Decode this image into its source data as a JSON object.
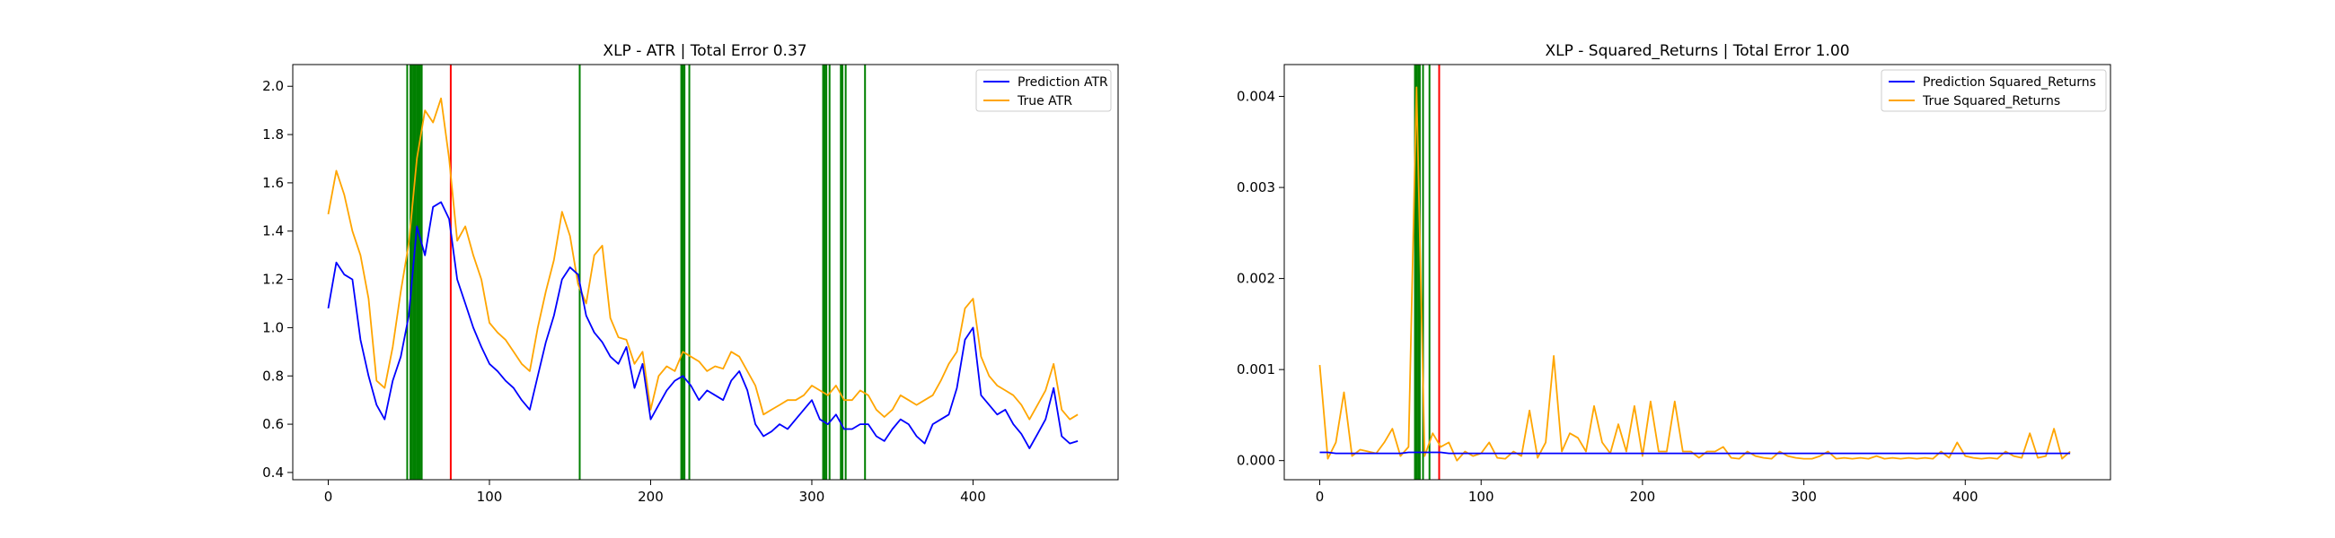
{
  "chart_data": [
    {
      "type": "line",
      "title": "XLP - ATR | Total Error 0.37",
      "xlabel": "",
      "ylabel": "",
      "xlim": [
        -22,
        490
      ],
      "ylim": [
        0.37,
        2.09
      ],
      "x_ticks": [
        0,
        100,
        200,
        300,
        400
      ],
      "y_ticks": [
        0.4,
        0.6,
        0.8,
        1.0,
        1.2,
        1.4,
        1.6,
        1.8,
        2.0
      ],
      "y_tick_labels": [
        "0.4",
        "0.6",
        "0.8",
        "1.0",
        "1.2",
        "1.4",
        "1.6",
        "1.8",
        "2.0"
      ],
      "grid": false,
      "legend_position": "top-right",
      "x_start": 0,
      "x_step": 5,
      "series": [
        {
          "name": "Prediction ATR",
          "color": "#0000ff",
          "values": [
            1.08,
            1.27,
            1.22,
            1.2,
            0.95,
            0.8,
            0.68,
            0.62,
            0.78,
            0.88,
            1.05,
            1.42,
            1.3,
            1.5,
            1.52,
            1.45,
            1.2,
            1.1,
            1.0,
            0.92,
            0.85,
            0.82,
            0.78,
            0.75,
            0.7,
            0.66,
            0.8,
            0.94,
            1.05,
            1.2,
            1.25,
            1.22,
            1.05,
            0.98,
            0.94,
            0.88,
            0.85,
            0.92,
            0.75,
            0.85,
            0.62,
            0.68,
            0.74,
            0.78,
            0.8,
            0.76,
            0.7,
            0.74,
            0.72,
            0.7,
            0.78,
            0.82,
            0.74,
            0.6,
            0.55,
            0.57,
            0.6,
            0.58,
            0.62,
            0.66,
            0.7,
            0.62,
            0.6,
            0.64,
            0.58,
            0.58,
            0.6,
            0.6,
            0.55,
            0.53,
            0.58,
            0.62,
            0.6,
            0.55,
            0.52,
            0.6,
            0.62,
            0.64,
            0.75,
            0.95,
            1.0,
            0.72,
            0.68,
            0.64,
            0.66,
            0.6,
            0.56,
            0.5,
            0.56,
            0.62,
            0.75,
            0.55,
            0.52,
            0.53
          ]
        },
        {
          "name": "True ATR",
          "color": "#ffa500",
          "values": [
            1.47,
            1.65,
            1.55,
            1.4,
            1.3,
            1.12,
            0.78,
            0.75,
            0.92,
            1.15,
            1.35,
            1.7,
            1.9,
            1.85,
            1.95,
            1.7,
            1.36,
            1.42,
            1.3,
            1.2,
            1.02,
            0.98,
            0.95,
            0.9,
            0.85,
            0.82,
            1.0,
            1.15,
            1.28,
            1.48,
            1.38,
            1.18,
            1.1,
            1.3,
            1.34,
            1.04,
            0.96,
            0.95,
            0.85,
            0.9,
            0.66,
            0.8,
            0.84,
            0.82,
            0.9,
            0.88,
            0.86,
            0.82,
            0.84,
            0.83,
            0.9,
            0.88,
            0.82,
            0.76,
            0.64,
            0.66,
            0.68,
            0.7,
            0.7,
            0.72,
            0.76,
            0.74,
            0.72,
            0.76,
            0.7,
            0.7,
            0.74,
            0.72,
            0.66,
            0.63,
            0.66,
            0.72,
            0.7,
            0.68,
            0.7,
            0.72,
            0.78,
            0.85,
            0.9,
            1.08,
            1.12,
            0.88,
            0.8,
            0.76,
            0.74,
            0.72,
            0.68,
            0.62,
            0.68,
            0.74,
            0.85,
            0.66,
            0.62,
            0.64
          ]
        }
      ],
      "green_vlines": [
        49,
        51,
        52,
        53,
        54,
        55,
        56,
        57,
        58,
        156,
        219,
        220,
        221,
        224,
        307,
        308,
        309,
        311,
        318,
        319,
        321,
        333
      ],
      "red_vlines": [
        76
      ]
    },
    {
      "type": "line",
      "title": "XLP - Squared_Returns | Total Error 1.00",
      "xlabel": "",
      "ylabel": "",
      "xlim": [
        -22,
        490
      ],
      "ylim": [
        -0.00021,
        0.00435
      ],
      "x_ticks": [
        0,
        100,
        200,
        300,
        400
      ],
      "y_ticks": [
        0.0,
        0.001,
        0.002,
        0.003,
        0.004
      ],
      "y_tick_labels": [
        "0.000",
        "0.001",
        "0.002",
        "0.003",
        "0.004"
      ],
      "grid": false,
      "legend_position": "top-right",
      "x_start": 0,
      "x_step": 5,
      "series": [
        {
          "name": "Prediction Squared_Returns",
          "color": "#0000ff",
          "values": [
            9e-05,
            9e-05,
            8e-05,
            8e-05,
            8e-05,
            8e-05,
            8e-05,
            8e-05,
            8e-05,
            8e-05,
            8e-05,
            9e-05,
            9e-05,
            9e-05,
            9e-05,
            9e-05,
            8e-05,
            8e-05,
            8e-05,
            8e-05,
            8e-05,
            8e-05,
            8e-05,
            8e-05,
            8e-05,
            8e-05,
            8e-05,
            8e-05,
            8e-05,
            8e-05,
            8e-05,
            8e-05,
            8e-05,
            8e-05,
            8e-05,
            8e-05,
            8e-05,
            8e-05,
            8e-05,
            8e-05,
            8e-05,
            8e-05,
            8e-05,
            8e-05,
            8e-05,
            8e-05,
            8e-05,
            8e-05,
            8e-05,
            8e-05,
            8e-05,
            8e-05,
            8e-05,
            8e-05,
            8e-05,
            8e-05,
            8e-05,
            8e-05,
            8e-05,
            8e-05,
            8e-05,
            8e-05,
            8e-05,
            8e-05,
            8e-05,
            8e-05,
            8e-05,
            8e-05,
            8e-05,
            8e-05,
            8e-05,
            8e-05,
            8e-05,
            8e-05,
            8e-05,
            8e-05,
            8e-05,
            8e-05,
            8e-05,
            8e-05,
            8e-05,
            8e-05,
            8e-05,
            8e-05,
            8e-05,
            8e-05,
            8e-05,
            8e-05,
            8e-05,
            8e-05,
            8e-05,
            8e-05,
            8e-05,
            8e-05
          ]
        },
        {
          "name": "True Squared_Returns",
          "color": "#ffa500",
          "values": [
            0.00105,
            2e-05,
            0.0002,
            0.00075,
            5e-05,
            0.00012,
            0.0001,
            8e-05,
            0.0002,
            0.00035,
            5e-05,
            0.00015,
            0.0041,
            5e-05,
            0.0003,
            0.00015,
            0.0002,
            0.0,
            0.0001,
            5e-05,
            8e-05,
            0.0002,
            3e-05,
            2e-05,
            0.0001,
            5e-05,
            0.00055,
            3e-05,
            0.0002,
            0.00115,
            0.0001,
            0.0003,
            0.00025,
            0.0001,
            0.0006,
            0.0002,
            8e-05,
            0.0004,
            0.0001,
            0.0006,
            5e-05,
            0.00065,
            0.0001,
            0.0001,
            0.00065,
            0.0001,
            0.0001,
            3e-05,
            0.0001,
            0.0001,
            0.00015,
            3e-05,
            2e-05,
            0.0001,
            5e-05,
            3e-05,
            2e-05,
            0.0001,
            5e-05,
            3e-05,
            2e-05,
            2e-05,
            5e-05,
            0.0001,
            2e-05,
            3e-05,
            2e-05,
            3e-05,
            2e-05,
            5e-05,
            2e-05,
            3e-05,
            2e-05,
            3e-05,
            2e-05,
            3e-05,
            2e-05,
            0.0001,
            3e-05,
            0.0002,
            5e-05,
            3e-05,
            2e-05,
            3e-05,
            2e-05,
            0.0001,
            5e-05,
            3e-05,
            0.0003,
            3e-05,
            5e-05,
            0.00035,
            2e-05,
            0.0001
          ]
        }
      ],
      "green_vlines": [
        59,
        60,
        61,
        62,
        64,
        68
      ],
      "red_vlines": [
        74
      ]
    }
  ]
}
